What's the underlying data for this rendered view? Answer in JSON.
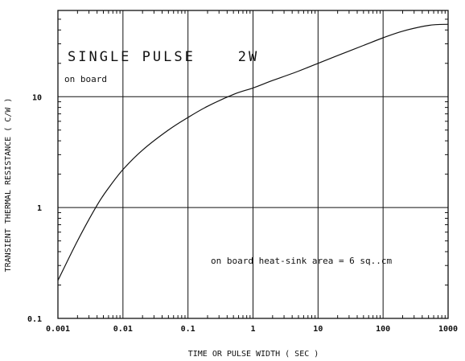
{
  "chart_data": {
    "type": "line",
    "title": "SINGLE PULSE    2W",
    "annotations": [
      "on board",
      "on board heat-sink area = 6 sq..cm"
    ],
    "xlabel": "TIME OR PULSE WIDTH ( SEC )",
    "ylabel": "TRANSIENT THERMAL RESISTANCE ( C/W )",
    "xscale": "log",
    "yscale": "log",
    "xlim": [
      0.001,
      1000
    ],
    "ylim": [
      0.1,
      60
    ],
    "x_ticks": [
      "0.001",
      "0.01",
      "0.1",
      "1",
      "10",
      "100",
      "1000"
    ],
    "x_tick_values": [
      0.001,
      0.01,
      0.1,
      1,
      10,
      100,
      1000
    ],
    "y_ticks": [
      "0.1",
      "1",
      "10"
    ],
    "y_tick_values": [
      0.1,
      1,
      10
    ],
    "grid": true,
    "series": [
      {
        "x": [
          0.001,
          0.002,
          0.004,
          0.006,
          0.01,
          0.02,
          0.05,
          0.1,
          0.2,
          0.5,
          1,
          2,
          5,
          10,
          20,
          50,
          100,
          200,
          500,
          1000
        ],
        "y": [
          0.22,
          0.5,
          1.05,
          1.5,
          2.2,
          3.3,
          5.0,
          6.5,
          8.2,
          10.5,
          12.0,
          14.0,
          17.0,
          20.0,
          23.5,
          29.0,
          34.0,
          39.0,
          44.0,
          45.0
        ]
      }
    ]
  }
}
